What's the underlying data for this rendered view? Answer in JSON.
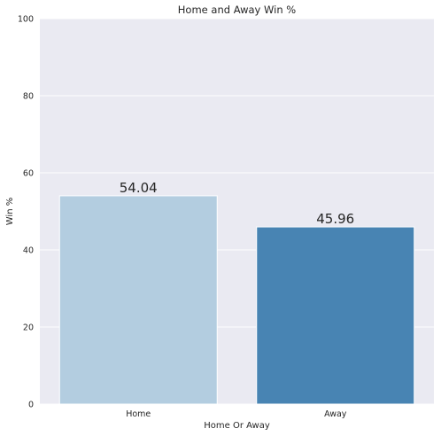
{
  "chart_data": {
    "type": "bar",
    "title": "Home and Away Win %",
    "xlabel": "Home Or Away",
    "ylabel": "Win %",
    "categories": [
      "Home",
      "Away"
    ],
    "values": [
      54.04,
      45.96
    ],
    "data_labels": [
      "54.04",
      "45.96"
    ],
    "ylim": [
      0,
      100
    ],
    "yticks": [
      0,
      20,
      40,
      60,
      80,
      100
    ],
    "grid": true,
    "colors": [
      "#b3cde0",
      "#4884b3"
    ],
    "background": "#eaeaf2"
  }
}
